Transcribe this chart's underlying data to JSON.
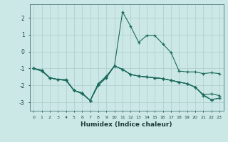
{
  "x": [
    0,
    1,
    2,
    3,
    4,
    5,
    6,
    7,
    8,
    9,
    10,
    11,
    12,
    13,
    14,
    15,
    16,
    17,
    18,
    19,
    20,
    21,
    22,
    23
  ],
  "line1": [
    -1.0,
    -1.15,
    -1.55,
    -1.65,
    -1.65,
    -2.3,
    -2.45,
    -2.9,
    -1.9,
    -1.5,
    -0.85,
    2.35,
    1.5,
    0.55,
    0.95,
    0.95,
    0.45,
    -0.05,
    -1.15,
    -1.2,
    -1.2,
    -1.3,
    -1.25,
    -1.3
  ],
  "line2": [
    -1.0,
    -1.15,
    -1.55,
    -1.65,
    -1.7,
    -2.3,
    -2.5,
    -2.9,
    -2.0,
    -1.55,
    -0.85,
    -1.05,
    -1.35,
    -1.45,
    -1.5,
    -1.55,
    -1.6,
    -1.7,
    -1.8,
    -1.9,
    -2.1,
    -2.6,
    -2.85,
    -2.75
  ],
  "line3": [
    -1.0,
    -1.1,
    -1.55,
    -1.65,
    -1.7,
    -2.3,
    -2.45,
    -2.9,
    -1.9,
    -1.45,
    -0.85,
    -1.05,
    -1.35,
    -1.45,
    -1.5,
    -1.55,
    -1.6,
    -1.7,
    -1.8,
    -1.9,
    -2.1,
    -2.55,
    -2.5,
    -2.6
  ],
  "line4": [
    -1.0,
    -1.1,
    -1.55,
    -1.65,
    -1.7,
    -2.3,
    -2.45,
    -2.9,
    -1.9,
    -1.5,
    -0.85,
    -1.05,
    -1.35,
    -1.45,
    -1.5,
    -1.55,
    -1.6,
    -1.7,
    -1.8,
    -1.9,
    -2.1,
    -2.55,
    -2.85,
    -2.75
  ],
  "color": "#1a6b5a",
  "bg_color": "#cce8e6",
  "grid_color": "#aaccca",
  "xlabel": "Humidex (Indice chaleur)",
  "ylim": [
    -3.5,
    2.8
  ],
  "xlim": [
    -0.5,
    23.5
  ],
  "yticks": [
    -3,
    -2,
    -1,
    0,
    1,
    2
  ],
  "xticks": [
    0,
    1,
    2,
    3,
    4,
    5,
    6,
    7,
    8,
    9,
    10,
    11,
    12,
    13,
    14,
    15,
    16,
    17,
    18,
    19,
    20,
    21,
    22,
    23
  ],
  "marker": "+"
}
